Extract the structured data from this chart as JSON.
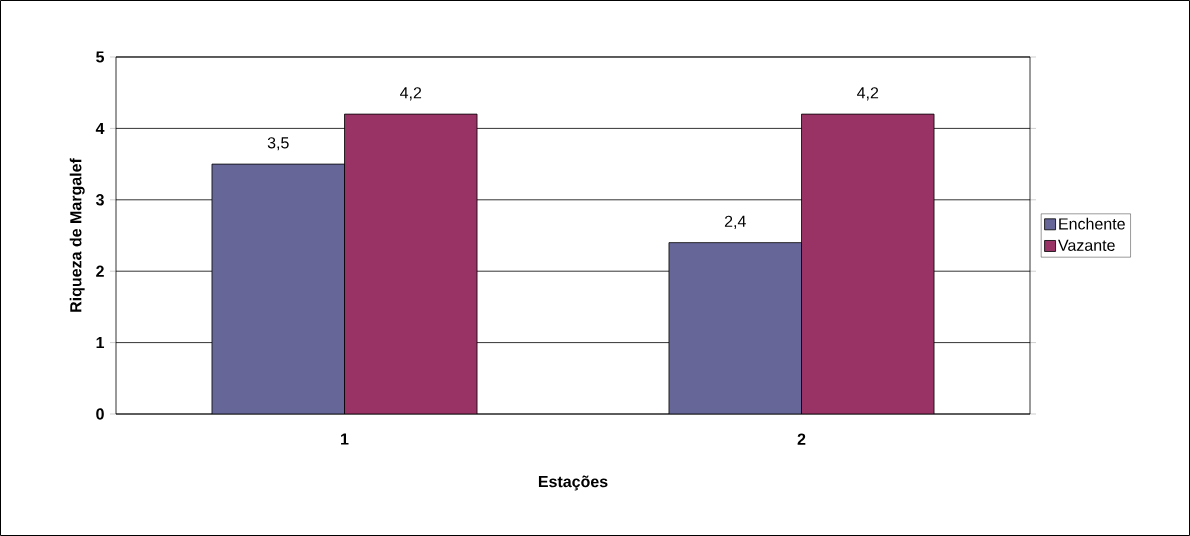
{
  "chart_data": {
    "type": "bar",
    "xlabel": "Estações",
    "ylabel": "Riqueza de Margalef",
    "categories": [
      "1",
      "2"
    ],
    "series": [
      {
        "name": "Enchente",
        "color": "#666699",
        "values": [
          3.5,
          2.4
        ],
        "value_labels": [
          "3,5",
          "2,4"
        ]
      },
      {
        "name": "Vazante",
        "color": "#993366",
        "values": [
          4.2,
          4.2
        ],
        "value_labels": [
          "4,2",
          "4,2"
        ]
      }
    ],
    "ylim": [
      0,
      5
    ],
    "yticks": [
      0,
      1,
      2,
      3,
      4,
      5
    ],
    "grid": "y",
    "legend": "right"
  }
}
